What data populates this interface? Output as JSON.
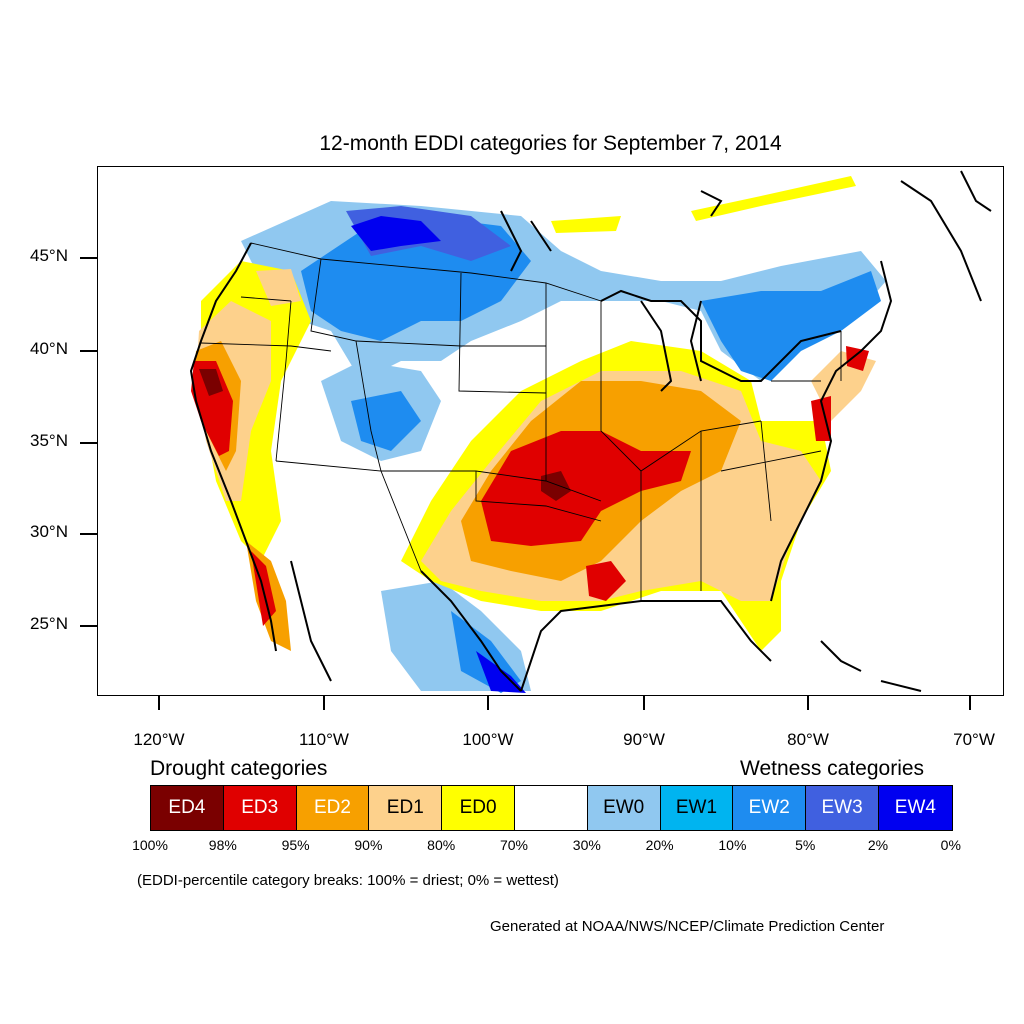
{
  "title": "12-month EDDI categories for September 7, 2014",
  "lat_labels": [
    "45°N",
    "40°N",
    "35°N",
    "30°N",
    "25°N"
  ],
  "lon_labels": [
    "120°W",
    "110°W",
    "100°W",
    "90°W",
    "80°W",
    "70°W"
  ],
  "legend": {
    "drought_heading": "Drought categories",
    "wetness_heading": "Wetness categories",
    "categories": [
      {
        "label": "ED4",
        "color": "#7a0000",
        "text_color": "#ffffff"
      },
      {
        "label": "ED3",
        "color": "#e00000",
        "text_color": "#ffffff"
      },
      {
        "label": "ED2",
        "color": "#f7a000",
        "text_color": "#ffffff"
      },
      {
        "label": "ED1",
        "color": "#fdd18c",
        "text_color": "#000000"
      },
      {
        "label": "ED0",
        "color": "#ffff00",
        "text_color": "#000000"
      },
      {
        "label": "",
        "color": "#ffffff",
        "text_color": "#000000"
      },
      {
        "label": "EW0",
        "color": "#90c8f0",
        "text_color": "#000000"
      },
      {
        "label": "EW1",
        "color": "#00b4f0",
        "text_color": "#000000"
      },
      {
        "label": "EW2",
        "color": "#1e8cf0",
        "text_color": "#ffffff"
      },
      {
        "label": "EW3",
        "color": "#4060e0",
        "text_color": "#ffffff"
      },
      {
        "label": "EW4",
        "color": "#0000f0",
        "text_color": "#ffffff"
      }
    ],
    "percentiles": [
      "100%",
      "98%",
      "95%",
      "90%",
      "80%",
      "70%",
      "30%",
      "20%",
      "10%",
      "5%",
      "2%",
      "0%"
    ]
  },
  "note": "(EDDI-percentile category breaks: 100% = driest; 0% = wettest)",
  "credit": "Generated at NOAA/NWS/NCEP/Climate Prediction Center"
}
